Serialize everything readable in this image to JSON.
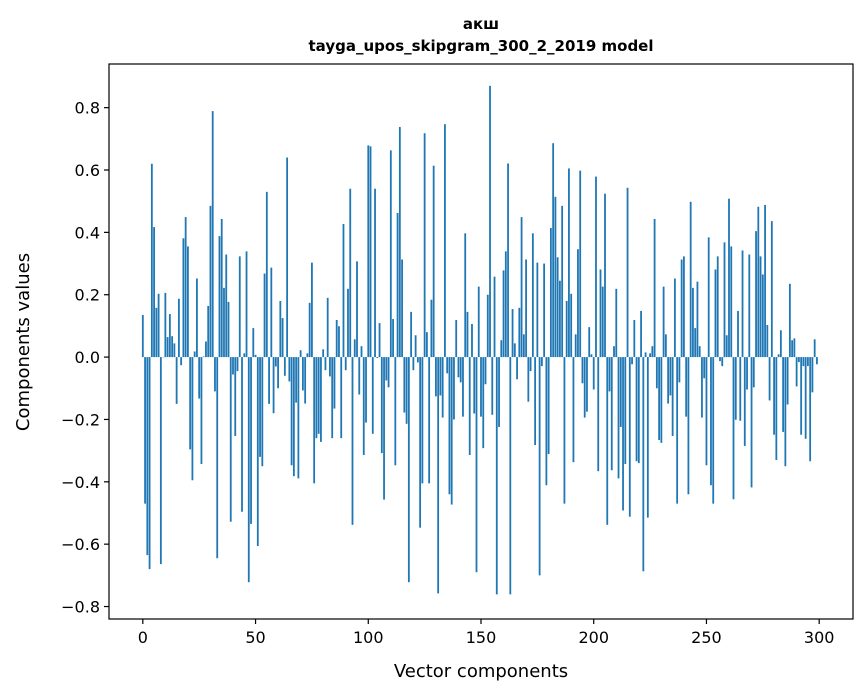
{
  "chart_data": {
    "type": "bar",
    "title": "акш",
    "subtitle": "tayga_upos_skipgram_300_2_2019 model",
    "xlabel": "Vector components",
    "ylabel": "Components values",
    "xlim": [
      -15,
      315
    ],
    "ylim": [
      -0.84,
      0.94
    ],
    "xticks": [
      0,
      50,
      100,
      150,
      200,
      250,
      300
    ],
    "xtick_labels": [
      "0",
      "50",
      "100",
      "150",
      "200",
      "250",
      "300"
    ],
    "yticks": [
      -0.8,
      -0.6,
      -0.4,
      -0.2,
      0.0,
      0.2,
      0.4,
      0.6,
      0.8
    ],
    "ytick_labels": [
      "−0.8",
      "−0.6",
      "−0.4",
      "−0.2",
      "0.0",
      "0.2",
      "0.4",
      "0.6",
      "0.8"
    ],
    "grid": false,
    "bar_color": "#1f77b4",
    "values": [
      0.135,
      -0.47,
      -0.635,
      -0.68,
      0.62,
      0.417,
      0.158,
      0.203,
      -0.664,
      0.0,
      0.206,
      0.064,
      0.138,
      0.067,
      0.044,
      -0.15,
      0.187,
      -0.026,
      0.381,
      0.449,
      0.355,
      -0.296,
      -0.395,
      0.018,
      0.252,
      -0.133,
      -0.343,
      0.002,
      0.05,
      0.164,
      0.485,
      0.789,
      -0.11,
      -0.645,
      0.388,
      0.443,
      0.222,
      0.329,
      0.177,
      -0.528,
      -0.056,
      -0.253,
      -0.045,
      0.323,
      -0.496,
      0.012,
      0.339,
      -0.722,
      -0.535,
      0.093,
      0.007,
      -0.606,
      -0.32,
      -0.35,
      0.268,
      0.53,
      -0.15,
      0.287,
      -0.18,
      -0.03,
      -0.1,
      0.18,
      0.125,
      -0.06,
      0.64,
      -0.078,
      -0.347,
      -0.382,
      -0.146,
      -0.389,
      0.022,
      -0.107,
      -0.149,
      0.012,
      0.174,
      0.303,
      -0.405,
      -0.26,
      -0.246,
      -0.272,
      0.025,
      -0.042,
      0.19,
      -0.062,
      -0.26,
      -0.165,
      0.119,
      0.099,
      -0.26,
      0.427,
      -0.042,
      0.219,
      0.54,
      -0.538,
      0.057,
      0.307,
      -0.12,
      0.035,
      -0.314,
      -0.21,
      0.679,
      0.676,
      -0.246,
      0.54,
      -0.003,
      0.109,
      -0.308,
      -0.457,
      -0.075,
      -0.097,
      0.663,
      0.122,
      -0.347,
      0.462,
      0.738,
      0.313,
      -0.178,
      -0.214,
      -0.722,
      0.145,
      -0.042,
      0.07,
      -0.017,
      -0.547,
      -0.405,
      0.718,
      0.08,
      -0.405,
      0.184,
      0.614,
      -0.126,
      -0.758,
      -0.123,
      -0.194,
      0.747,
      -0.052,
      -0.44,
      -0.473,
      -0.2,
      0.119,
      -0.065,
      -0.081,
      -0.191,
      0.397,
      0.145,
      -0.314,
      0.106,
      -0.181,
      -0.69,
      0.226,
      -0.191,
      -0.292,
      -0.087,
      0.2,
      0.87,
      -0.185,
      0.258,
      -0.761,
      -0.224,
      0.054,
      0.278,
      0.339,
      0.621,
      -0.761,
      0.154,
      0.044,
      -0.071,
      0.158,
      0.449,
      0.073,
      0.313,
      -0.143,
      -0.045,
      0.397,
      -0.282,
      0.303,
      -0.7,
      -0.029,
      0.3,
      -0.411,
      -0.311,
      0.414,
      0.686,
      0.514,
      0.32,
      0.245,
      0.485,
      -0.47,
      0.18,
      0.605,
      0.203,
      -0.337,
      0.073,
      0.346,
      0.598,
      -0.084,
      -0.194,
      -0.175,
      0.096,
      0.009,
      -0.104,
      0.579,
      -0.366,
      0.281,
      0.226,
      0.524,
      -0.538,
      -0.11,
      -0.363,
      0.035,
      0.219,
      -0.389,
      -0.224,
      -0.492,
      -0.343,
      0.543,
      -0.512,
      -0.023,
      0.119,
      -0.334,
      -0.34,
      0.148,
      -0.687,
      0.015,
      -0.515,
      0.012,
      0.035,
      0.443,
      -0.1,
      -0.266,
      -0.275,
      0.226,
      0.073,
      -0.149,
      -0.123,
      -0.253,
      0.252,
      -0.47,
      -0.081,
      0.313,
      0.323,
      -0.191,
      -0.44,
      0.498,
      0.222,
      0.093,
      0.242,
      0.035,
      -0.194,
      -0.068,
      -0.347,
      0.384,
      -0.411,
      -0.47,
      0.281,
      0.323,
      -0.013,
      -0.029,
      0.368,
      0.07,
      0.508,
      0.355,
      -0.456,
      -0.201,
      0.148,
      -0.204,
      0.342,
      -0.285,
      -0.104,
      0.329,
      -0.418,
      -0.097,
      0.404,
      0.482,
      0.323,
      0.265,
      0.488,
      0.103,
      -0.139,
      0.436,
      -0.249,
      -0.33,
      0.009,
      0.086,
      -0.24,
      -0.35,
      -0.152,
      0.235,
      0.054,
      0.06,
      -0.094,
      -0.016,
      -0.249,
      -0.029,
      -0.262,
      -0.029,
      -0.334,
      -0.113,
      0.057,
      -0.023
    ]
  }
}
